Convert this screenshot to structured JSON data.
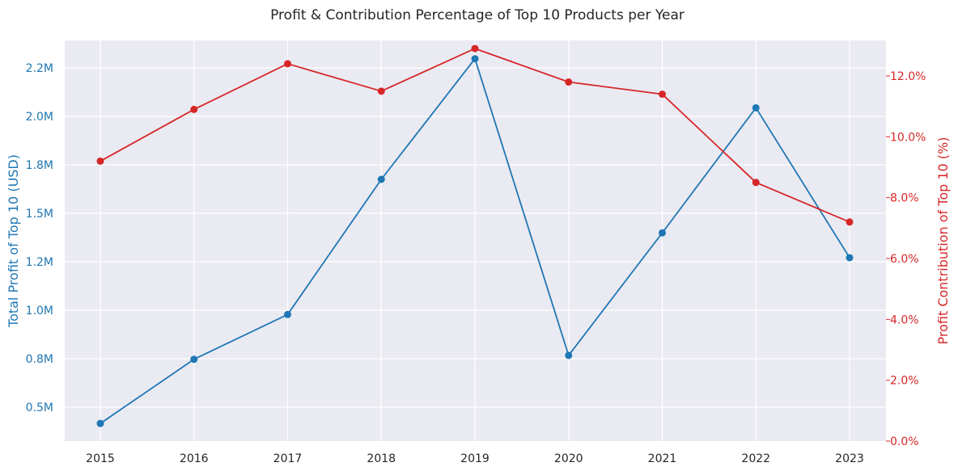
{
  "chart_data": {
    "type": "line",
    "title": "Profit & Contribution Percentage of Top 10 Products per Year",
    "xlabel": "",
    "x": [
      "2015",
      "2016",
      "2017",
      "2018",
      "2019",
      "2020",
      "2021",
      "2022",
      "2023"
    ],
    "y_left": {
      "label": "Total Profit of Top 10 (USD)",
      "ticks": [
        "0.5M",
        "0.8M",
        "1.0M",
        "1.2M",
        "1.5M",
        "1.8M",
        "2.0M",
        "2.2M"
      ],
      "color": "#1f77b4"
    },
    "y_right": {
      "label": "Profit Contribution of Top 10 (%)",
      "ticks": [
        "0.0%",
        "2.0%",
        "4.0%",
        "6.0%",
        "8.0%",
        "10.0%",
        "12.0%"
      ],
      "color": "#d62728"
    },
    "series": [
      {
        "axis": "left",
        "color": "#1f77b4",
        "values": [
          416000,
          747000,
          978000,
          1675000,
          2297000,
          767000,
          1399000,
          2044000,
          1271000
        ]
      },
      {
        "axis": "right",
        "color": "#d62728",
        "values": [
          9.2,
          10.9,
          12.4,
          11.5,
          12.9,
          11.8,
          11.4,
          8.5,
          7.2
        ]
      }
    ],
    "grid": true
  }
}
